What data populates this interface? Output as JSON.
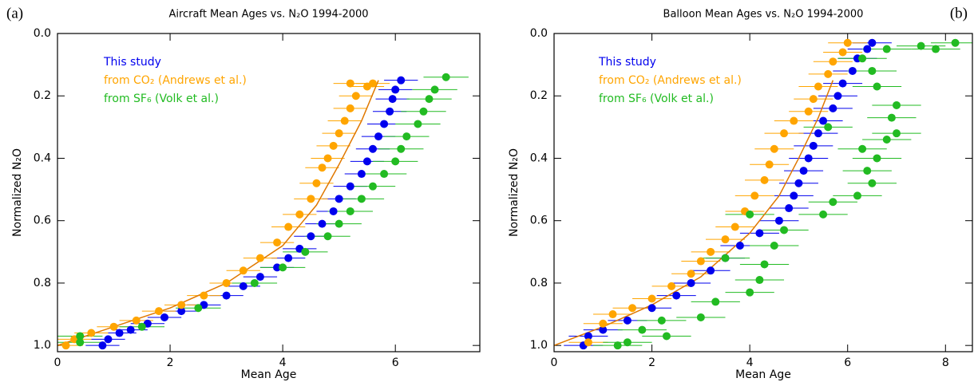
{
  "chart_data": [
    {
      "type": "scatter",
      "panel_label": "(a)",
      "title": "Aircraft Mean Ages vs. N₂O  1994-2000",
      "xlabel": "Mean Age",
      "ylabel": "Normalized N₂O",
      "xlim": [
        0,
        7.5
      ],
      "xticks": [
        0,
        2,
        4,
        6
      ],
      "ylim": [
        1.02,
        0
      ],
      "yticks": [
        {
          "value": 0,
          "label": "0.0"
        },
        {
          "value": 0.2,
          "label": "0.2"
        },
        {
          "value": 0.4,
          "label": "0.4"
        },
        {
          "value": 0.6,
          "label": "0.6"
        },
        {
          "value": 0.8,
          "label": "0.8"
        },
        {
          "value": 1,
          "label": "1.0"
        }
      ],
      "series": [
        {
          "name": "This study",
          "color": "#0000ee",
          "x": [
            0.8,
            0.9,
            1.1,
            1.3,
            1.6,
            1.9,
            2.2,
            2.6,
            3.0,
            3.3,
            3.6,
            3.9,
            4.1,
            4.3,
            4.5,
            4.7,
            4.9,
            5.0,
            5.2,
            5.4,
            5.5,
            5.6,
            5.7,
            5.8,
            5.9,
            5.95,
            6.0,
            6.1
          ],
          "values": [
            1.0,
            0.98,
            0.96,
            0.95,
            0.93,
            0.91,
            0.89,
            0.87,
            0.84,
            0.81,
            0.78,
            0.75,
            0.72,
            0.69,
            0.65,
            0.61,
            0.57,
            0.53,
            0.49,
            0.45,
            0.41,
            0.37,
            0.33,
            0.29,
            0.25,
            0.21,
            0.18,
            0.15
          ],
          "xerr": [
            0.3,
            0.3,
            0.3,
            0.3,
            0.3,
            0.3,
            0.3,
            0.3,
            0.3,
            0.3,
            0.3,
            0.3,
            0.3,
            0.3,
            0.3,
            0.3,
            0.3,
            0.3,
            0.3,
            0.3,
            0.3,
            0.3,
            0.3,
            0.3,
            0.3,
            0.3,
            0.3,
            0.3
          ]
        },
        {
          "name": "from CO₂ (Andrews et al.)",
          "color": "#ffa500",
          "x": [
            0.15,
            0.3,
            0.6,
            1.0,
            1.4,
            1.8,
            2.2,
            2.6,
            3.0,
            3.3,
            3.6,
            3.9,
            4.1,
            4.3,
            4.5,
            4.6,
            4.7,
            4.8,
            4.9,
            5.0,
            5.1,
            5.2,
            5.3,
            5.2,
            5.5,
            5.6
          ],
          "values": [
            1.0,
            0.98,
            0.96,
            0.94,
            0.92,
            0.89,
            0.87,
            0.84,
            0.8,
            0.76,
            0.72,
            0.67,
            0.62,
            0.58,
            0.53,
            0.48,
            0.43,
            0.4,
            0.36,
            0.32,
            0.28,
            0.24,
            0.2,
            0.16,
            0.17,
            0.16
          ],
          "xerr": [
            0.3,
            0.3,
            0.3,
            0.3,
            0.3,
            0.3,
            0.3,
            0.3,
            0.3,
            0.3,
            0.3,
            0.3,
            0.3,
            0.3,
            0.3,
            0.3,
            0.3,
            0.3,
            0.3,
            0.3,
            0.3,
            0.3,
            0.3,
            0.3,
            0.3,
            0.3
          ]
        },
        {
          "name": "from SF₆ (Volk et al.)",
          "color": "#22bb22",
          "x": [
            0.4,
            0.4,
            1.5,
            2.5,
            3.5,
            4.0,
            4.4,
            4.8,
            5.0,
            5.2,
            5.4,
            5.6,
            5.8,
            6.0,
            6.1,
            6.2,
            6.4,
            6.5,
            6.6,
            6.7,
            6.9
          ],
          "values": [
            0.99,
            0.97,
            0.94,
            0.88,
            0.8,
            0.75,
            0.7,
            0.65,
            0.61,
            0.57,
            0.53,
            0.49,
            0.45,
            0.41,
            0.37,
            0.33,
            0.29,
            0.25,
            0.21,
            0.18,
            0.14
          ],
          "xerr": [
            0.4,
            0.4,
            0.4,
            0.4,
            0.4,
            0.4,
            0.4,
            0.4,
            0.4,
            0.4,
            0.4,
            0.4,
            0.4,
            0.4,
            0.4,
            0.4,
            0.4,
            0.4,
            0.4,
            0.4,
            0.4
          ]
        }
      ],
      "fit_line": {
        "color": "#e07800",
        "x": [
          0,
          1,
          2,
          3,
          4,
          4.6,
          5.0,
          5.4,
          5.7
        ],
        "values": [
          1.0,
          0.94,
          0.88,
          0.8,
          0.68,
          0.55,
          0.42,
          0.28,
          0.15
        ]
      }
    },
    {
      "type": "scatter",
      "panel_label": "(b)",
      "title": "Balloon Mean Ages vs. N₂O  1994-2000",
      "xlabel": "Mean Age",
      "ylabel": "Normalized N₂O",
      "xlim": [
        0,
        8.55
      ],
      "xticks": [
        0,
        2,
        4,
        6,
        8
      ],
      "ylim": [
        1.02,
        0
      ],
      "yticks": [
        {
          "value": 0,
          "label": "0.0"
        },
        {
          "value": 0.2,
          "label": "0.2"
        },
        {
          "value": 0.4,
          "label": "0.4"
        },
        {
          "value": 0.6,
          "label": "0.6"
        },
        {
          "value": 0.8,
          "label": "0.8"
        },
        {
          "value": 1,
          "label": "1.0"
        }
      ],
      "series": [
        {
          "name": "This study",
          "color": "#0000ee",
          "x": [
            0.6,
            0.7,
            1.0,
            1.5,
            2.0,
            2.5,
            2.8,
            3.2,
            3.5,
            3.8,
            4.2,
            4.6,
            4.8,
            4.9,
            5.0,
            5.1,
            5.2,
            5.3,
            5.4,
            5.5,
            5.7,
            5.8,
            5.9,
            6.1,
            6.2,
            6.4,
            6.5
          ],
          "values": [
            1.0,
            0.97,
            0.95,
            0.92,
            0.88,
            0.84,
            0.8,
            0.76,
            0.72,
            0.68,
            0.64,
            0.6,
            0.56,
            0.52,
            0.48,
            0.44,
            0.4,
            0.36,
            0.32,
            0.28,
            0.24,
            0.2,
            0.16,
            0.12,
            0.08,
            0.05,
            0.03
          ],
          "xerr": [
            0.4,
            0.4,
            0.4,
            0.4,
            0.4,
            0.4,
            0.4,
            0.4,
            0.4,
            0.4,
            0.4,
            0.4,
            0.4,
            0.4,
            0.4,
            0.4,
            0.4,
            0.4,
            0.4,
            0.4,
            0.4,
            0.4,
            0.4,
            0.4,
            0.4,
            0.4,
            0.4
          ]
        },
        {
          "name": "from CO₂ (Andrews et al.)",
          "color": "#ffa500",
          "x": [
            0.7,
            1.0,
            1.2,
            1.6,
            2.0,
            2.4,
            2.8,
            3.0,
            3.2,
            3.5,
            3.7,
            3.9,
            4.1,
            4.3,
            4.4,
            4.5,
            4.7,
            4.9,
            5.2,
            5.3,
            5.4,
            5.6,
            5.7,
            5.9,
            6.0
          ],
          "values": [
            0.99,
            0.93,
            0.9,
            0.88,
            0.85,
            0.81,
            0.77,
            0.73,
            0.7,
            0.66,
            0.62,
            0.57,
            0.52,
            0.47,
            0.42,
            0.37,
            0.32,
            0.28,
            0.25,
            0.21,
            0.17,
            0.13,
            0.09,
            0.06,
            0.03
          ],
          "xerr": [
            0.4,
            0.4,
            0.4,
            0.4,
            0.4,
            0.4,
            0.4,
            0.4,
            0.4,
            0.4,
            0.4,
            0.4,
            0.4,
            0.4,
            0.4,
            0.4,
            0.4,
            0.4,
            0.4,
            0.4,
            0.4,
            0.4,
            0.4,
            0.4,
            0.4
          ]
        },
        {
          "name": "from SF₆ (Volk et al.)",
          "color": "#22bb22",
          "x": [
            1.3,
            1.5,
            1.8,
            2.3,
            2.2,
            3.0,
            3.3,
            4.0,
            4.2,
            4.3,
            3.5,
            4.5,
            4.7,
            4.0,
            5.5,
            5.7,
            6.2,
            6.5,
            6.4,
            6.6,
            6.3,
            6.8,
            7.0,
            5.6,
            6.9,
            7.0,
            6.6,
            6.5,
            6.3,
            6.8,
            7.5,
            7.8,
            8.2
          ],
          "values": [
            1.0,
            0.99,
            0.95,
            0.97,
            0.92,
            0.91,
            0.86,
            0.83,
            0.79,
            0.74,
            0.72,
            0.68,
            0.63,
            0.58,
            0.58,
            0.54,
            0.52,
            0.48,
            0.44,
            0.4,
            0.37,
            0.34,
            0.32,
            0.3,
            0.27,
            0.23,
            0.17,
            0.12,
            0.08,
            0.05,
            0.04,
            0.05,
            0.03
          ],
          "xerr": [
            0.5,
            0.5,
            0.5,
            0.5,
            0.5,
            0.5,
            0.5,
            0.5,
            0.5,
            0.5,
            0.5,
            0.5,
            0.5,
            0.5,
            0.5,
            0.5,
            0.5,
            0.5,
            0.5,
            0.5,
            0.5,
            0.5,
            0.5,
            0.5,
            0.5,
            0.5,
            0.5,
            0.5,
            0.5,
            0.5,
            0.5,
            0.5,
            0.5
          ]
        }
      ],
      "fit_line": {
        "color": "#e07800",
        "x": [
          0,
          1,
          2,
          3,
          4,
          4.6,
          5.0,
          5.4,
          5.7
        ],
        "values": [
          1.0,
          0.94,
          0.87,
          0.78,
          0.64,
          0.52,
          0.4,
          0.27,
          0.15
        ]
      }
    }
  ]
}
